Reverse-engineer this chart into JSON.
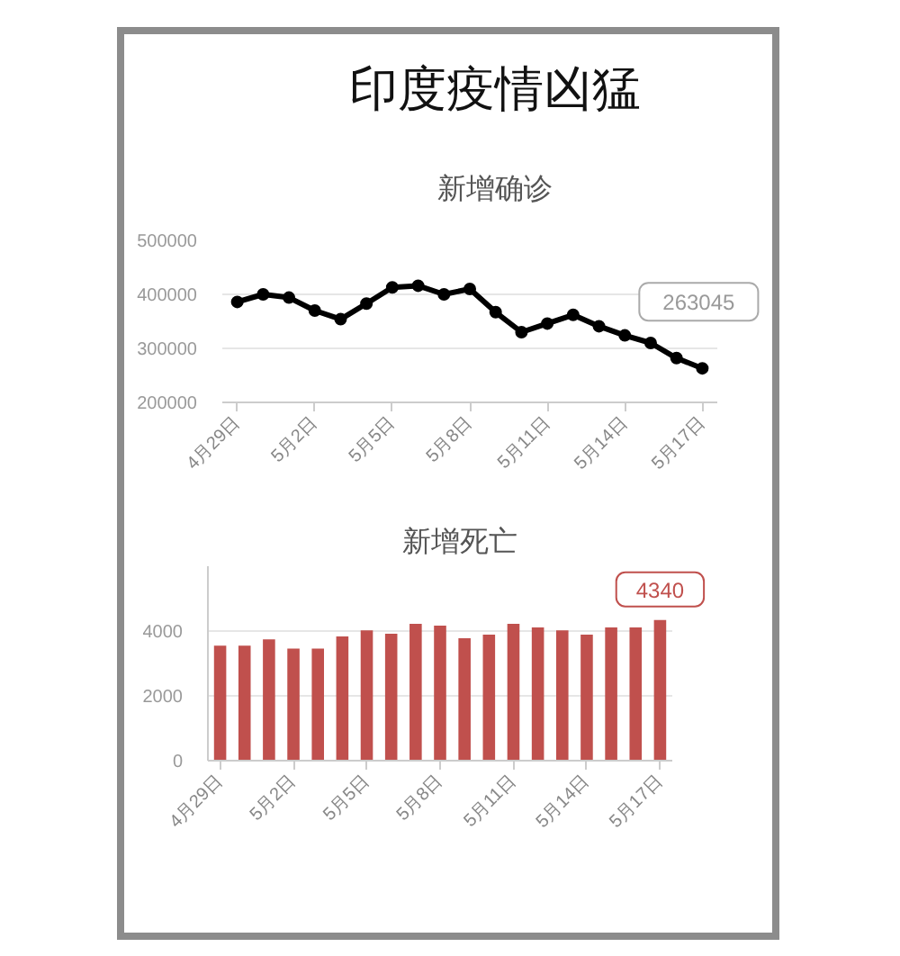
{
  "chart_data": [
    {
      "type": "line",
      "title": "印度疫情凶猛",
      "subtitle": "新增确诊",
      "categories": [
        "4月29日",
        null,
        null,
        "5月2日",
        null,
        null,
        "5月5日",
        null,
        null,
        "5月8日",
        null,
        null,
        "5月11日",
        null,
        null,
        "5月14日",
        null,
        null,
        "5月17日"
      ],
      "values": [
        386000,
        400000,
        394000,
        370000,
        354000,
        383000,
        413000,
        416000,
        400000,
        410000,
        367000,
        330000,
        346000,
        362000,
        341000,
        324000,
        310000,
        282000,
        263045
      ],
      "value_labels": [
        null,
        null,
        null,
        null,
        null,
        null,
        null,
        null,
        null,
        null,
        null,
        null,
        null,
        null,
        null,
        null,
        null,
        null,
        "263045"
      ],
      "color": "#000000",
      "marker": "circle",
      "ylim": [
        200000,
        500000
      ],
      "yticks": [
        200000,
        300000,
        400000,
        500000
      ],
      "grid": "y"
    },
    {
      "type": "bar",
      "title": "新增死亡",
      "categories": [
        "4月29日",
        null,
        null,
        "5月2日",
        null,
        null,
        "5月5日",
        null,
        null,
        "5月8日",
        null,
        null,
        "5月11日",
        null,
        null,
        "5月14日",
        null,
        null,
        "5月17日"
      ],
      "values": [
        3550,
        3550,
        3740,
        3460,
        3460,
        3830,
        4020,
        3920,
        4220,
        4170,
        3780,
        3890,
        4220,
        4110,
        4020,
        3890,
        4110,
        4110,
        4340
      ],
      "value_labels": [
        null,
        null,
        null,
        null,
        null,
        null,
        null,
        null,
        null,
        null,
        null,
        null,
        null,
        null,
        null,
        null,
        null,
        null,
        "4340"
      ],
      "color": "#c0504d",
      "ylim": [
        0,
        6000
      ],
      "yticks": [
        0,
        2000,
        4000
      ],
      "grid": "y"
    }
  ]
}
